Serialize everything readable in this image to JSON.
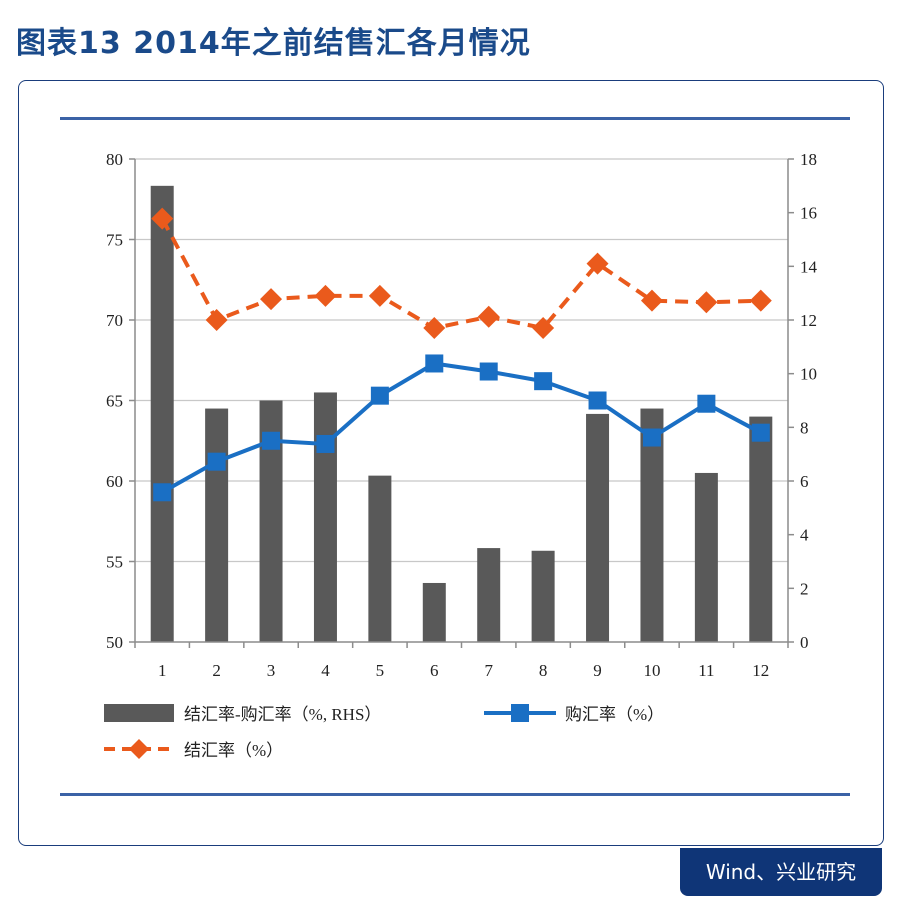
{
  "title": "图表13  2014年之前结售汇各月情况",
  "source": "Wind、兴业研究",
  "colors": {
    "bar": "#595959",
    "buy_line": "#1a6fc4",
    "settle_line": "#ea5a1c"
  },
  "chart_data": {
    "type": "bar",
    "categories": [
      "1",
      "2",
      "3",
      "4",
      "5",
      "6",
      "7",
      "8",
      "9",
      "10",
      "11",
      "12"
    ],
    "y_left": {
      "ylim": [
        50,
        80
      ],
      "ticks": [
        "50",
        "55",
        "60",
        "65",
        "70",
        "75",
        "80"
      ]
    },
    "y_right": {
      "ylim": [
        0,
        18
      ],
      "ticks": [
        "0",
        "2",
        "4",
        "6",
        "8",
        "10",
        "12",
        "14",
        "16",
        "18"
      ]
    },
    "series": [
      {
        "name": "结汇率-购汇率（%, RHS）",
        "kind": "bar",
        "axis": "right",
        "values": [
          17.0,
          8.7,
          9.0,
          9.3,
          6.2,
          2.2,
          3.5,
          3.4,
          8.5,
          8.7,
          6.3,
          8.4
        ]
      },
      {
        "name": "购汇率（%）",
        "kind": "line",
        "axis": "left",
        "values": [
          59.3,
          61.2,
          62.5,
          62.3,
          65.3,
          67.3,
          66.8,
          66.2,
          65.0,
          62.7,
          64.8,
          63.0
        ]
      },
      {
        "name": "结汇率（%）",
        "kind": "line-dashed",
        "axis": "left",
        "values": [
          76.3,
          70.0,
          71.3,
          71.5,
          71.5,
          69.5,
          70.2,
          69.5,
          73.5,
          71.2,
          71.1,
          71.2
        ]
      }
    ],
    "grid": true,
    "legend_position": "bottom"
  }
}
